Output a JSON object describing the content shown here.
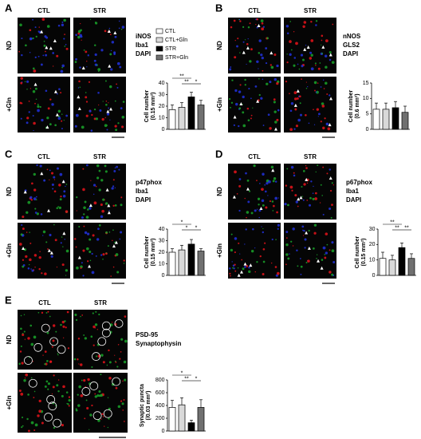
{
  "groups": [
    {
      "name": "CTL",
      "color": "#ffffff"
    },
    {
      "name": "CTL+Gln",
      "color": "#d9d9d9"
    },
    {
      "name": "STR",
      "color": "#000000"
    },
    {
      "name": "STR+Gln",
      "color": "#707070"
    }
  ],
  "panels": [
    {
      "letter": "A",
      "columns": [
        "CTL",
        "STR"
      ],
      "rows": [
        "ND",
        "+Gln"
      ],
      "stains": [
        {
          "text": "iNOS",
          "color": "#e8141b"
        },
        {
          "text": "Iba1",
          "color": "#1aa52a"
        },
        {
          "text": "DAPI",
          "color": "#2233dd"
        }
      ]
    },
    {
      "letter": "B",
      "columns": [
        "CTL",
        "STR"
      ],
      "rows": [
        "ND",
        "+Gln"
      ],
      "stains": [
        {
          "text": "nNOS",
          "color": "#e8141b"
        },
        {
          "text": "GLS2",
          "color": "#1aa52a"
        },
        {
          "text": "DAPI",
          "color": "#2233dd"
        }
      ]
    },
    {
      "letter": "C",
      "columns": [
        "CTL",
        "STR"
      ],
      "rows": [
        "ND",
        "+Gln"
      ],
      "stains": [
        {
          "text": "p47phox",
          "color": "#e8141b"
        },
        {
          "text": "Iba1",
          "color": "#1aa52a"
        },
        {
          "text": "DAPI",
          "color": "#2233dd"
        }
      ]
    },
    {
      "letter": "D",
      "columns": [
        "CTL",
        "STR"
      ],
      "rows": [
        "ND",
        "+Gln"
      ],
      "stains": [
        {
          "text": "p67phox",
          "color": "#1aa52a"
        },
        {
          "text": "Iba1",
          "color": "#e8141b"
        },
        {
          "text": "DAPI",
          "color": "#2233dd"
        }
      ]
    },
    {
      "letter": "E",
      "columns": [
        "CTL",
        "STR"
      ],
      "rows": [
        "ND",
        "+Gln"
      ],
      "stains": [
        {
          "text": "PSD-95",
          "color": "#e8141b"
        },
        {
          "text": "Synaptophysin",
          "color": "#1aa52a"
        }
      ]
    }
  ],
  "chart_data": [
    {
      "type": "bar",
      "ylabel": [
        "Cell number",
        "(0.15 mm²)"
      ],
      "ylim": [
        0,
        40
      ],
      "yticks": [
        0,
        10,
        20,
        30,
        40
      ],
      "values": [
        17,
        19,
        28,
        21
      ],
      "errors": [
        4,
        4,
        4,
        4
      ],
      "significance": [
        {
          "label": "**",
          "between": [
            "CTL",
            "STR"
          ]
        },
        {
          "label": "**",
          "between": [
            "CTL+Gln",
            "STR"
          ]
        },
        {
          "label": "*",
          "between": [
            "STR",
            "STR+Gln"
          ]
        }
      ]
    },
    {
      "type": "bar",
      "ylabel": [
        "Cell number",
        "(0.6 mm²)"
      ],
      "ylim": [
        0,
        15
      ],
      "yticks": [
        0,
        5,
        10,
        15
      ],
      "values": [
        6.5,
        6.5,
        7,
        5.5
      ],
      "errors": [
        2,
        2,
        2,
        2
      ],
      "significance": []
    },
    {
      "type": "bar",
      "ylabel": [
        "Cell number",
        "(0.15 mm²)"
      ],
      "ylim": [
        0,
        40
      ],
      "yticks": [
        0,
        10,
        20,
        30,
        40
      ],
      "values": [
        20,
        22,
        27,
        21
      ],
      "errors": [
        3,
        4,
        4,
        2
      ],
      "significance": [
        {
          "label": "*",
          "between": [
            "CTL",
            "STR"
          ]
        },
        {
          "label": "*",
          "between": [
            "CTL+Gln",
            "STR"
          ]
        },
        {
          "label": "*",
          "between": [
            "STR",
            "STR+Gln"
          ]
        }
      ]
    },
    {
      "type": "bar",
      "ylabel": [
        "Cell number",
        "(0.15 mm²)"
      ],
      "ylim": [
        0,
        30
      ],
      "yticks": [
        0,
        10,
        20,
        30
      ],
      "values": [
        11,
        10,
        18,
        11
      ],
      "errors": [
        4,
        3,
        3,
        3
      ],
      "significance": [
        {
          "label": "**",
          "between": [
            "CTL",
            "STR"
          ]
        },
        {
          "label": "**",
          "between": [
            "CTL+Gln",
            "STR"
          ]
        },
        {
          "label": "**",
          "between": [
            "STR",
            "STR+Gln"
          ]
        }
      ]
    },
    {
      "type": "bar",
      "ylabel": [
        "Synaptic puncta",
        "(/0.03 mm²)"
      ],
      "ylim": [
        0,
        800
      ],
      "yticks": [
        0,
        200,
        400,
        600,
        800
      ],
      "values": [
        370,
        410,
        130,
        370
      ],
      "errors": [
        110,
        110,
        40,
        120
      ],
      "significance": [
        {
          "label": "*",
          "between": [
            "CTL",
            "STR"
          ]
        },
        {
          "label": "**",
          "between": [
            "CTL+Gln",
            "STR"
          ]
        },
        {
          "label": "*",
          "between": [
            "STR",
            "STR+Gln"
          ]
        }
      ]
    }
  ]
}
